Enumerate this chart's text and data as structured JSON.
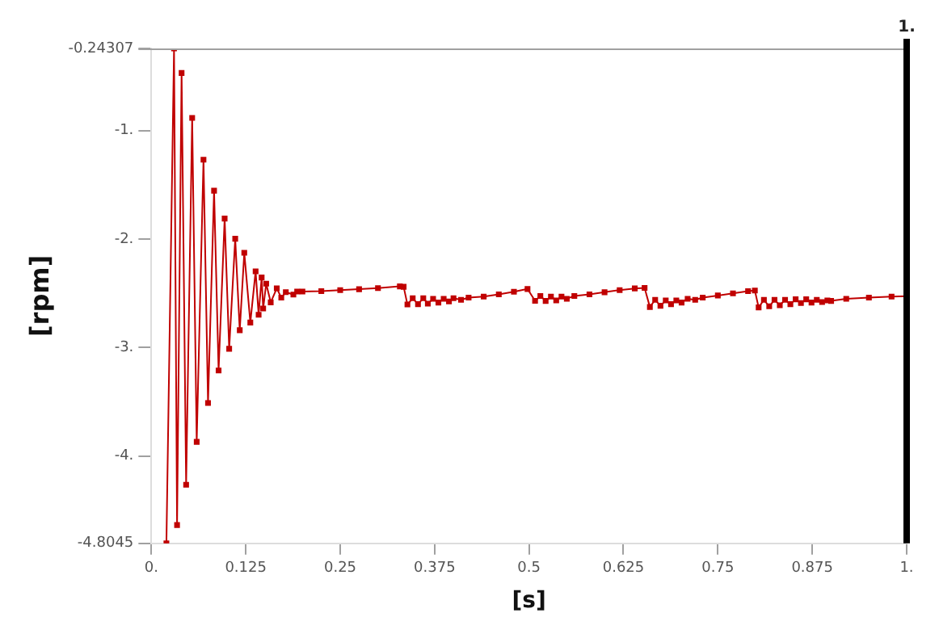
{
  "chart_data": {
    "type": "line",
    "xlabel": "[s]",
    "ylabel": "[rpm]",
    "x": [
      0.0199,
      0.03,
      0.034,
      0.04,
      0.046,
      0.054,
      0.06,
      0.069,
      0.075,
      0.083,
      0.089,
      0.097,
      0.103,
      0.111,
      0.117,
      0.123,
      0.131,
      0.138,
      0.142,
      0.146,
      0.148,
      0.152,
      0.158,
      0.166,
      0.172,
      0.178,
      0.188,
      0.193,
      0.2,
      0.225,
      0.25,
      0.275,
      0.3,
      0.329,
      0.334,
      0.339,
      0.346,
      0.353,
      0.36,
      0.366,
      0.373,
      0.38,
      0.387,
      0.394,
      0.4,
      0.41,
      0.42,
      0.44,
      0.46,
      0.48,
      0.498,
      0.508,
      0.515,
      0.522,
      0.529,
      0.536,
      0.543,
      0.55,
      0.56,
      0.58,
      0.6,
      0.62,
      0.64,
      0.653,
      0.66,
      0.667,
      0.674,
      0.681,
      0.688,
      0.695,
      0.702,
      0.71,
      0.72,
      0.73,
      0.75,
      0.77,
      0.79,
      0.799,
      0.804,
      0.811,
      0.818,
      0.825,
      0.832,
      0.839,
      0.846,
      0.853,
      0.86,
      0.867,
      0.874,
      0.881,
      0.888,
      0.895,
      0.9,
      0.92,
      0.95,
      0.98,
      1.0
    ],
    "series": [
      {
        "color": "#c00000",
        "values": [
          -4.8045,
          -0.24307,
          -4.636,
          -0.469,
          -4.264,
          -0.883,
          -3.869,
          -1.269,
          -3.511,
          -1.554,
          -3.211,
          -1.811,
          -3.011,
          -1.997,
          -2.84,
          -2.126,
          -2.769,
          -2.297,
          -2.697,
          -2.354,
          -2.64,
          -2.411,
          -2.583,
          -2.454,
          -2.54,
          -2.489,
          -2.511,
          -2.483,
          -2.483,
          -2.48,
          -2.47,
          -2.462,
          -2.452,
          -2.436,
          -2.44,
          -2.603,
          -2.545,
          -2.6,
          -2.545,
          -2.595,
          -2.55,
          -2.585,
          -2.55,
          -2.575,
          -2.545,
          -2.56,
          -2.54,
          -2.53,
          -2.51,
          -2.485,
          -2.46,
          -2.569,
          -2.525,
          -2.57,
          -2.53,
          -2.565,
          -2.53,
          -2.55,
          -2.525,
          -2.51,
          -2.49,
          -2.47,
          -2.455,
          -2.45,
          -2.626,
          -2.56,
          -2.615,
          -2.565,
          -2.6,
          -2.565,
          -2.585,
          -2.55,
          -2.56,
          -2.54,
          -2.52,
          -2.5,
          -2.48,
          -2.474,
          -2.63,
          -2.56,
          -2.62,
          -2.56,
          -2.61,
          -2.56,
          -2.6,
          -2.555,
          -2.59,
          -2.555,
          -2.585,
          -2.56,
          -2.58,
          -2.565,
          -2.57,
          -2.55,
          -2.54,
          -2.53,
          -2.526
        ]
      }
    ],
    "xlim": [
      0,
      1
    ],
    "xticks": [
      {
        "value": 0,
        "label": "0."
      },
      0.125,
      0.25,
      0.375,
      0.5,
      0.625,
      0.75,
      0.875,
      {
        "value": 1,
        "label": "1."
      }
    ],
    "ylim": [
      -4.8045,
      -0.24307
    ],
    "yticks": [
      -4.8045,
      {
        "value": -4,
        "label": "-4."
      },
      {
        "value": -3,
        "label": "-3."
      },
      {
        "value": -2,
        "label": "-2."
      },
      {
        "value": -1,
        "label": "-1."
      },
      -0.24307
    ],
    "ref_lines": [
      {
        "axis": "x",
        "value": 1,
        "label": "1.",
        "color": "#000000"
      }
    ],
    "grid": false,
    "legend": false,
    "marker": "square",
    "line_style": "solid"
  }
}
